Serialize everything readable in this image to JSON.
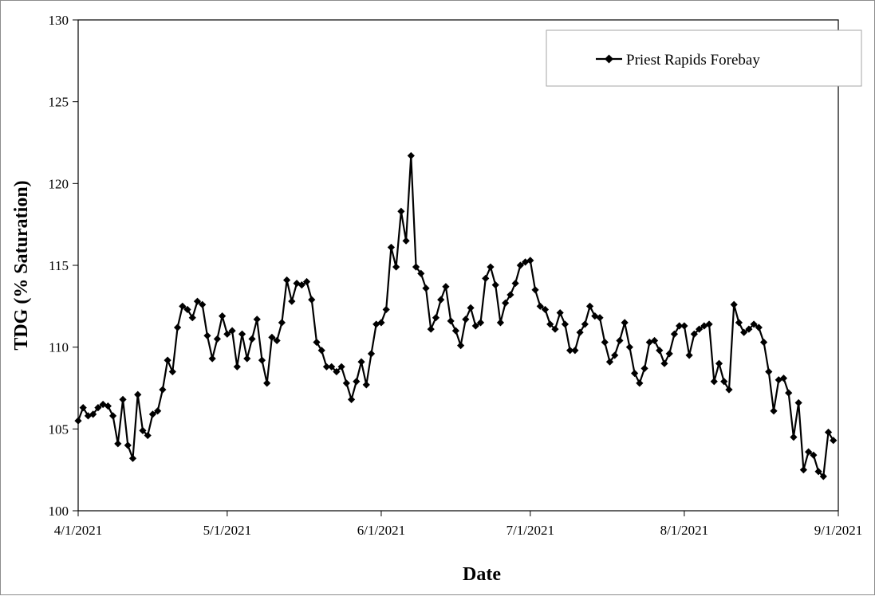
{
  "chart_data": {
    "type": "line",
    "title": "",
    "xlabel": "Date",
    "ylabel": "TDG (% Saturation)",
    "ylim": [
      100,
      130
    ],
    "yticks": [
      100,
      105,
      110,
      115,
      120,
      125,
      130
    ],
    "xlim": [
      "4/1/2021",
      "9/1/2021"
    ],
    "xticks": [
      "4/1/2021",
      "5/1/2021",
      "6/1/2021",
      "7/1/2021",
      "8/1/2021",
      "9/1/2021"
    ],
    "grid": false,
    "legend_position": "top-right",
    "series": [
      {
        "name": "Priest Rapids Forebay",
        "color": "#000000",
        "marker": "diamond",
        "x": [
          "4/1/2021",
          "4/2/2021",
          "4/3/2021",
          "4/4/2021",
          "4/5/2021",
          "4/6/2021",
          "4/7/2021",
          "4/8/2021",
          "4/9/2021",
          "4/10/2021",
          "4/11/2021",
          "4/12/2021",
          "4/13/2021",
          "4/14/2021",
          "4/15/2021",
          "4/16/2021",
          "4/17/2021",
          "4/18/2021",
          "4/19/2021",
          "4/20/2021",
          "4/21/2021",
          "4/22/2021",
          "4/23/2021",
          "4/24/2021",
          "4/25/2021",
          "4/26/2021",
          "4/27/2021",
          "4/28/2021",
          "4/29/2021",
          "4/30/2021",
          "5/1/2021",
          "5/2/2021",
          "5/3/2021",
          "5/4/2021",
          "5/5/2021",
          "5/6/2021",
          "5/7/2021",
          "5/8/2021",
          "5/9/2021",
          "5/10/2021",
          "5/11/2021",
          "5/12/2021",
          "5/13/2021",
          "5/14/2021",
          "5/15/2021",
          "5/16/2021",
          "5/17/2021",
          "5/18/2021",
          "5/19/2021",
          "5/20/2021",
          "5/21/2021",
          "5/22/2021",
          "5/23/2021",
          "5/24/2021",
          "5/25/2021",
          "5/26/2021",
          "5/27/2021",
          "5/28/2021",
          "5/29/2021",
          "5/30/2021",
          "5/31/2021",
          "6/1/2021",
          "6/2/2021",
          "6/3/2021",
          "6/4/2021",
          "6/5/2021",
          "6/6/2021",
          "6/7/2021",
          "6/8/2021",
          "6/9/2021",
          "6/10/2021",
          "6/11/2021",
          "6/12/2021",
          "6/13/2021",
          "6/14/2021",
          "6/15/2021",
          "6/16/2021",
          "6/17/2021",
          "6/18/2021",
          "6/19/2021",
          "6/20/2021",
          "6/21/2021",
          "6/22/2021",
          "6/23/2021",
          "6/24/2021",
          "6/25/2021",
          "6/26/2021",
          "6/27/2021",
          "6/28/2021",
          "6/29/2021",
          "6/30/2021",
          "7/1/2021",
          "7/2/2021",
          "7/3/2021",
          "7/4/2021",
          "7/5/2021",
          "7/6/2021",
          "7/7/2021",
          "7/8/2021",
          "7/9/2021",
          "7/10/2021",
          "7/11/2021",
          "7/12/2021",
          "7/13/2021",
          "7/14/2021",
          "7/15/2021",
          "7/16/2021",
          "7/17/2021",
          "7/18/2021",
          "7/19/2021",
          "7/20/2021",
          "7/21/2021",
          "7/22/2021",
          "7/23/2021",
          "7/24/2021",
          "7/25/2021",
          "7/26/2021",
          "7/27/2021",
          "7/28/2021",
          "7/29/2021",
          "7/30/2021",
          "7/31/2021",
          "8/1/2021",
          "8/2/2021",
          "8/3/2021",
          "8/4/2021",
          "8/5/2021",
          "8/6/2021",
          "8/7/2021",
          "8/8/2021",
          "8/9/2021",
          "8/10/2021",
          "8/11/2021",
          "8/12/2021",
          "8/13/2021",
          "8/14/2021",
          "8/15/2021",
          "8/16/2021",
          "8/17/2021",
          "8/18/2021",
          "8/19/2021",
          "8/20/2021",
          "8/21/2021",
          "8/22/2021",
          "8/23/2021",
          "8/24/2021",
          "8/25/2021",
          "8/26/2021",
          "8/27/2021",
          "8/28/2021",
          "8/29/2021",
          "8/30/2021",
          "8/31/2021"
        ],
        "values": [
          105.5,
          106.3,
          105.8,
          105.9,
          106.3,
          106.5,
          106.4,
          105.8,
          104.1,
          106.8,
          104.0,
          103.2,
          107.1,
          104.9,
          104.6,
          105.9,
          106.1,
          107.4,
          109.2,
          108.5,
          111.2,
          112.5,
          112.3,
          111.8,
          112.8,
          112.6,
          110.7,
          109.3,
          110.5,
          111.9,
          110.8,
          111.0,
          108.8,
          110.8,
          109.3,
          110.5,
          111.7,
          109.2,
          107.8,
          110.6,
          110.4,
          111.5,
          114.1,
          112.8,
          113.9,
          113.8,
          114.0,
          112.9,
          110.3,
          109.8,
          108.8,
          108.8,
          108.5,
          108.8,
          107.8,
          106.8,
          107.9,
          109.1,
          107.7,
          109.6,
          111.4,
          111.5,
          112.3,
          116.1,
          114.9,
          118.3,
          116.5,
          121.7,
          114.9,
          114.5,
          113.6,
          111.1,
          111.8,
          112.9,
          113.7,
          111.6,
          111.0,
          110.1,
          111.7,
          112.4,
          111.3,
          111.5,
          114.2,
          114.9,
          113.8,
          111.5,
          112.7,
          113.2,
          113.9,
          115.0,
          115.2,
          115.3,
          113.5,
          112.5,
          112.3,
          111.4,
          111.1,
          112.1,
          111.4,
          109.8,
          109.8,
          110.9,
          111.4,
          112.5,
          111.9,
          111.8,
          110.3,
          109.1,
          109.5,
          110.4,
          111.5,
          110.0,
          108.4,
          107.8,
          108.7,
          110.3,
          110.4,
          109.8,
          109.0,
          109.6,
          110.8,
          111.3,
          111.3,
          109.5,
          110.8,
          111.1,
          111.3,
          111.4,
          107.9,
          109.0,
          107.9,
          107.4,
          112.6,
          111.5,
          110.9,
          111.1,
          111.4,
          111.2,
          110.3,
          108.5,
          106.1,
          108.0,
          108.1,
          107.2,
          104.5,
          106.6,
          102.5,
          103.6,
          103.4,
          102.4,
          102.1,
          104.8,
          104.3
        ]
      }
    ]
  }
}
